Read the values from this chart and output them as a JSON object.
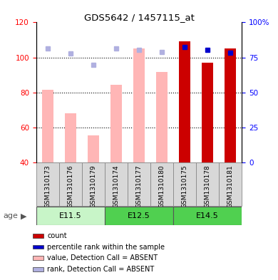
{
  "title": "GDS5642 / 1457115_at",
  "samples": [
    "GSM1310173",
    "GSM1310176",
    "GSM1310179",
    "GSM1310174",
    "GSM1310177",
    "GSM1310180",
    "GSM1310175",
    "GSM1310178",
    "GSM1310181"
  ],
  "age_groups": [
    {
      "label": "E11.5",
      "start": 0,
      "end": 3,
      "color": "#c8f5c8"
    },
    {
      "label": "E12.5",
      "start": 3,
      "end": 6,
      "color": "#50d050"
    },
    {
      "label": "E14.5",
      "start": 6,
      "end": 9,
      "color": "#50d050"
    }
  ],
  "value_absent": [
    81.5,
    68.0,
    55.5,
    84.5,
    105.0,
    91.5,
    null,
    null,
    null
  ],
  "rank_absent": [
    81.5,
    78.0,
    69.5,
    81.5,
    80.5,
    79.0,
    null,
    null,
    null
  ],
  "count_present": [
    null,
    null,
    null,
    null,
    null,
    null,
    109.0,
    97.0,
    105.0
  ],
  "percentile_present": [
    null,
    null,
    null,
    null,
    null,
    null,
    82.5,
    80.5,
    78.5
  ],
  "ylim_left": [
    40,
    120
  ],
  "ylim_right": [
    0,
    100
  ],
  "yticks_left": [
    40,
    60,
    80,
    100,
    120
  ],
  "ytick_labels_left": [
    "40",
    "60",
    "80",
    "100",
    "120"
  ],
  "yticks_right_vals": [
    0,
    25,
    50,
    75,
    100
  ],
  "ytick_labels_right": [
    "0",
    "25",
    "50",
    "75",
    "100%"
  ],
  "bar_bottom": 40,
  "color_value_absent": "#ffb6b6",
  "color_rank_absent": "#b0b0e0",
  "color_count": "#cc0000",
  "color_percentile": "#0000cc",
  "legend_items": [
    {
      "color": "#cc0000",
      "label": "count"
    },
    {
      "color": "#0000cc",
      "label": "percentile rank within the sample"
    },
    {
      "color": "#ffb6b6",
      "label": "value, Detection Call = ABSENT"
    },
    {
      "color": "#b0b0e0",
      "label": "rank, Detection Call = ABSENT"
    }
  ],
  "age_label": "age",
  "sample_box_color": "#d8d8d8",
  "sample_box_edge": "#888888"
}
